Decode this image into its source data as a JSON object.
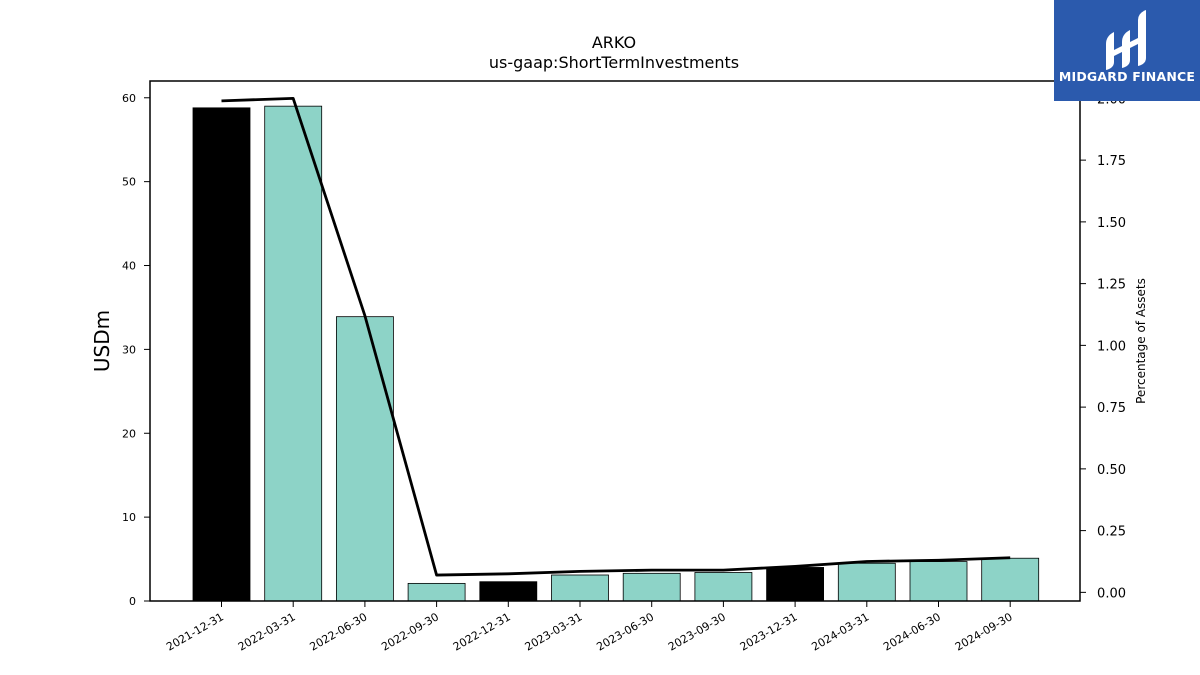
{
  "logo": {
    "text": "MIDGARD FINANCE",
    "bg_color": "#2b5aad"
  },
  "chart_data": {
    "type": "bar",
    "title": "ARKO",
    "subtitle": "us-gaap:ShortTermInvestments",
    "ylabel": "USDm",
    "y2label": "Percentage of Assets",
    "categories": [
      "2021-12-31",
      "2022-03-31",
      "2022-06-30",
      "2022-09-30",
      "2022-12-31",
      "2023-03-31",
      "2023-06-30",
      "2023-09-30",
      "2023-12-31",
      "2024-03-31",
      "2024-06-30",
      "2024-09-30"
    ],
    "values": [
      58.8,
      59.0,
      33.9,
      2.1,
      2.3,
      3.1,
      3.3,
      3.4,
      4.0,
      4.5,
      4.7,
      5.1
    ],
    "bar_colors": [
      "#000000",
      "#8dd3c7",
      "#8dd3c7",
      "#8dd3c7",
      "#000000",
      "#8dd3c7",
      "#8dd3c7",
      "#8dd3c7",
      "#000000",
      "#8dd3c7",
      "#8dd3c7",
      "#8dd3c7"
    ],
    "line_series": {
      "name": "",
      "values": [
        1.99,
        2.0,
        1.12,
        0.07,
        0.075,
        0.085,
        0.09,
        0.09,
        0.105,
        0.125,
        0.13,
        0.14
      ],
      "color": "#000000"
    },
    "ylim": [
      0,
      62
    ],
    "yticks": [
      0,
      10,
      20,
      30,
      40,
      50,
      60
    ],
    "y2lim": [
      -0.035,
      2.0704
    ],
    "y2ticks": [
      "0.00",
      "0.25",
      "0.50",
      "0.75",
      "1.00",
      "1.25",
      "1.50",
      "1.75",
      "2.00"
    ],
    "grid": false,
    "legend": "none"
  }
}
